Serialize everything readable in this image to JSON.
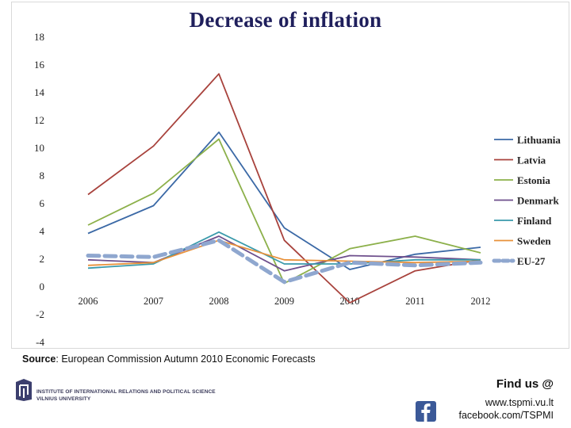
{
  "chart_data": {
    "type": "line",
    "title": "Decrease of inflation",
    "x": [
      "2006",
      "2007",
      "2008",
      "2009",
      "2010",
      "2011",
      "2012"
    ],
    "ylim": [
      -4,
      18
    ],
    "yticks": [
      18,
      16,
      14,
      12,
      10,
      8,
      6,
      4,
      2,
      0,
      -2,
      -4
    ],
    "grid": false,
    "legend_position": "right",
    "series": [
      {
        "name": "Lithuania",
        "color": "#3b69a6",
        "dashed": false,
        "values": [
          3.8,
          5.8,
          11.1,
          4.2,
          1.2,
          2.3,
          2.8
        ]
      },
      {
        "name": "Latvia",
        "color": "#a8423c",
        "dashed": false,
        "values": [
          6.6,
          10.1,
          15.3,
          3.3,
          -1.2,
          1.1,
          1.9
        ]
      },
      {
        "name": "Estonia",
        "color": "#8cb04a",
        "dashed": false,
        "values": [
          4.4,
          6.7,
          10.6,
          0.2,
          2.7,
          3.6,
          2.4
        ]
      },
      {
        "name": "Denmark",
        "color": "#6e4f8c",
        "dashed": false,
        "values": [
          1.9,
          1.7,
          3.6,
          1.1,
          2.2,
          2.1,
          1.9
        ]
      },
      {
        "name": "Finland",
        "color": "#3a9aab",
        "dashed": false,
        "values": [
          1.3,
          1.6,
          3.9,
          1.6,
          1.6,
          1.9,
          1.9
        ]
      },
      {
        "name": "Sweden",
        "color": "#e8913a",
        "dashed": false,
        "values": [
          1.5,
          1.7,
          3.3,
          1.9,
          1.8,
          1.7,
          1.8
        ]
      },
      {
        "name": "EU-27",
        "color": "#8fa7cf",
        "dashed": true,
        "values": [
          2.2,
          2.1,
          3.3,
          0.3,
          1.7,
          1.5,
          1.7
        ]
      }
    ]
  },
  "footer": {
    "source_label": "Source",
    "source_text": ": European Commission  Autumn 2010 Economic Forecasts",
    "institute_text": "INSTITUTE OF INTERNATIONAL RELATIONS AND POLITICAL SCIENCE\nVILNIUS UNIVERSITY",
    "find_us": "Find us @",
    "website": "www.tspmi.vu.lt",
    "facebook": "facebook.com/TSPMI"
  }
}
